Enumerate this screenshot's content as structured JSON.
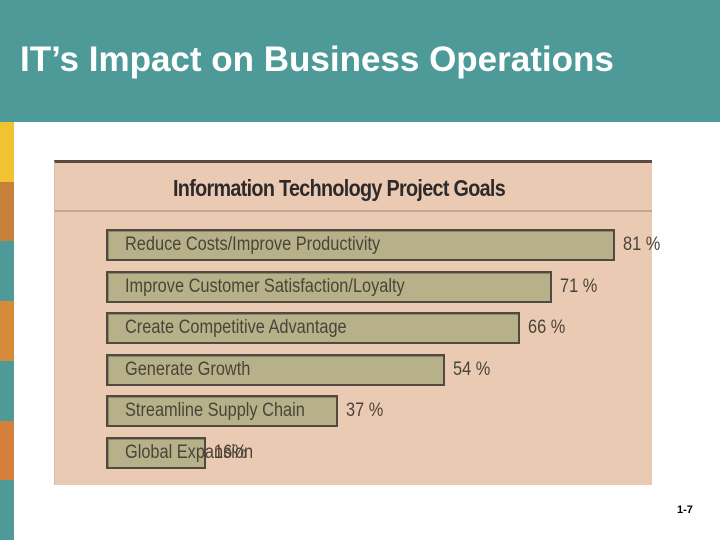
{
  "slide": {
    "title": "IT’s Impact on Business Operations",
    "page_number": "1-7",
    "colors": {
      "header_bg": "#4e9a98",
      "figure_bg": "#ebcab4",
      "bar_fill": "#b7b18a",
      "bar_border": "#504a40",
      "side_strip": [
        "#f1c232",
        "#c77f3c",
        "#4e9a98",
        "#d58b3a",
        "#4e9a98",
        "#d5803a",
        "#4e9a98"
      ]
    }
  },
  "chart_data": {
    "type": "bar",
    "orientation": "horizontal",
    "title": "Information Technology Project Goals",
    "categories": [
      "Reduce Costs/Improve Productivity",
      "Improve Customer Satisfaction/Loyalty",
      "Create Competitive Advantage",
      "Generate Growth",
      "Streamline Supply Chain",
      "Global Expansion"
    ],
    "values": [
      81,
      71,
      66,
      54,
      37,
      16
    ],
    "value_labels": [
      "81 %",
      "71 %",
      "66 %",
      "54 %",
      "37 %",
      "16%"
    ],
    "xlim": [
      0,
      100
    ],
    "grid": false,
    "legend": "none"
  }
}
